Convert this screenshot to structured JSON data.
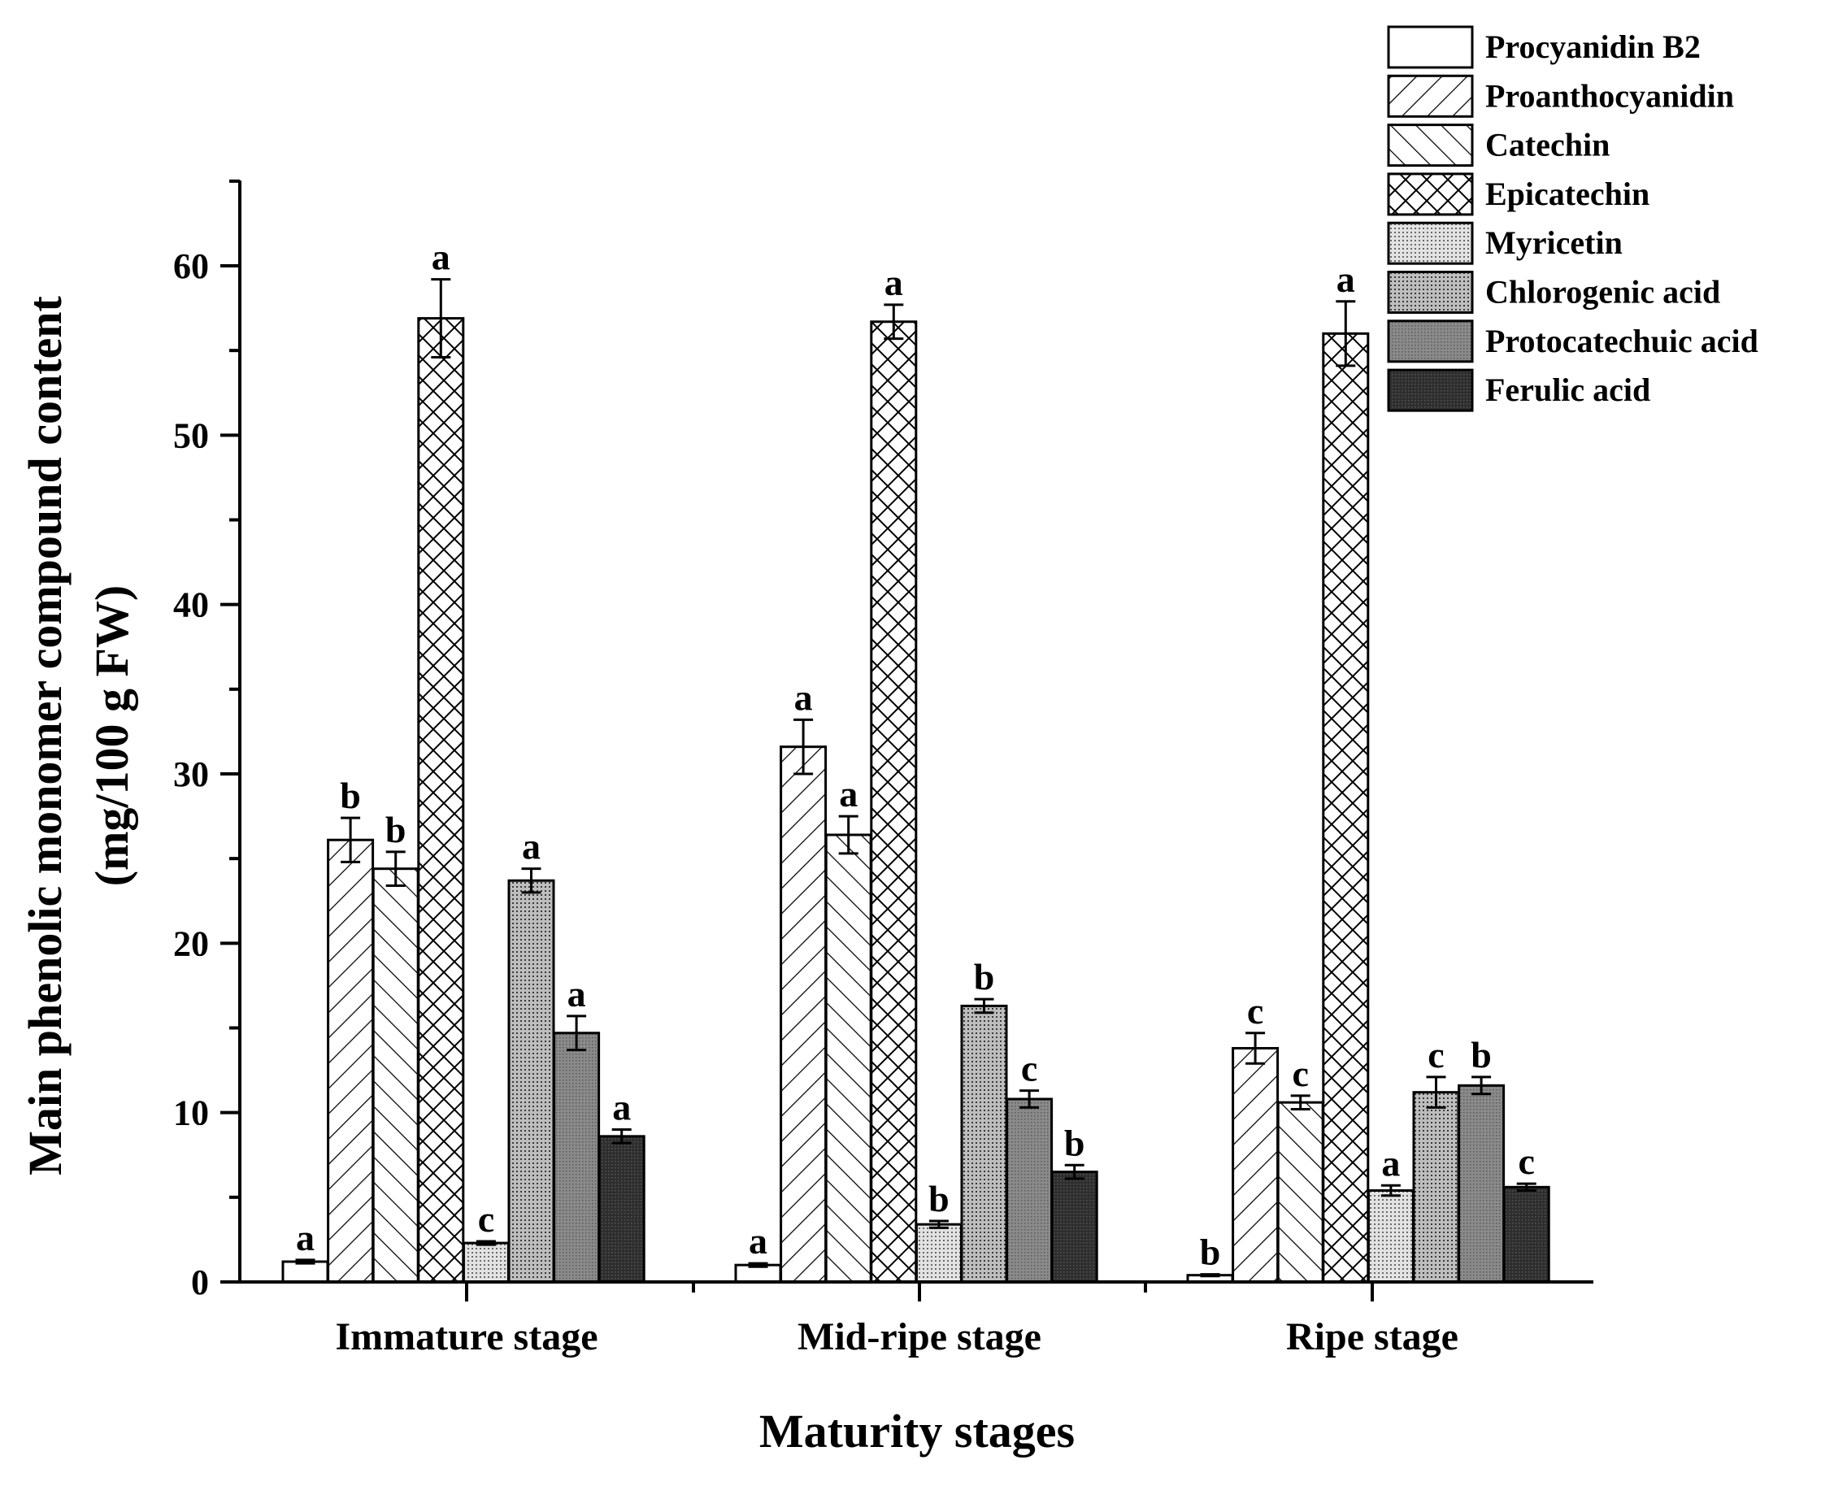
{
  "chart_data": {
    "type": "bar",
    "title": "",
    "xlabel": "Maturity stages",
    "ylabel_line1": "Main phenolic monomer compound content",
    "ylabel_line2": "(mg/100 g FW)",
    "ylim": [
      0,
      65
    ],
    "yticks": [
      0,
      10,
      20,
      30,
      40,
      50,
      60
    ],
    "ytick_labels": [
      "0",
      "10",
      "20",
      "30",
      "40",
      "50",
      "60"
    ],
    "categories": [
      "Immature stage",
      "Mid-ripe stage",
      "Ripe stage"
    ],
    "legend_position": "top-right",
    "series": [
      {
        "name": "Procyanidin B2",
        "pattern": "empty",
        "values": [
          1.2,
          1.0,
          0.4
        ],
        "errors": [
          0.1,
          0.1,
          0.05
        ],
        "labels": [
          "a",
          "a",
          "b"
        ]
      },
      {
        "name": "Proanthocyanidin",
        "pattern": "forward-diagonal",
        "values": [
          26.1,
          31.6,
          13.8
        ],
        "errors": [
          1.3,
          1.6,
          0.9
        ],
        "labels": [
          "b",
          "a",
          "c"
        ]
      },
      {
        "name": "Catechin",
        "pattern": "back-diagonal",
        "values": [
          24.4,
          26.4,
          10.6
        ],
        "errors": [
          1.0,
          1.1,
          0.4
        ],
        "labels": [
          "b",
          "a",
          "c"
        ]
      },
      {
        "name": "Epicatechin",
        "pattern": "crosshatch",
        "values": [
          56.9,
          56.7,
          56.0
        ],
        "errors": [
          2.3,
          1.0,
          1.9
        ],
        "labels": [
          "a",
          "a",
          "a"
        ]
      },
      {
        "name": "Myricetin",
        "pattern": "light-dots",
        "values": [
          2.3,
          3.4,
          5.4
        ],
        "errors": [
          0.1,
          0.2,
          0.3
        ],
        "labels": [
          "c",
          "b",
          "a"
        ]
      },
      {
        "name": "Chlorogenic acid",
        "pattern": "medium-dots",
        "values": [
          23.7,
          16.3,
          11.2
        ],
        "errors": [
          0.7,
          0.4,
          0.9
        ],
        "labels": [
          "a",
          "b",
          "c"
        ]
      },
      {
        "name": "Protocatechuic acid",
        "pattern": "dark-gray",
        "values": [
          14.7,
          10.8,
          11.6
        ],
        "errors": [
          1.0,
          0.5,
          0.5
        ],
        "labels": [
          "a",
          "c",
          "b"
        ]
      },
      {
        "name": "Ferulic acid",
        "pattern": "very-dark",
        "values": [
          8.6,
          6.5,
          5.6
        ],
        "errors": [
          0.4,
          0.4,
          0.2
        ],
        "labels": [
          "a",
          "b",
          "c"
        ]
      }
    ]
  }
}
